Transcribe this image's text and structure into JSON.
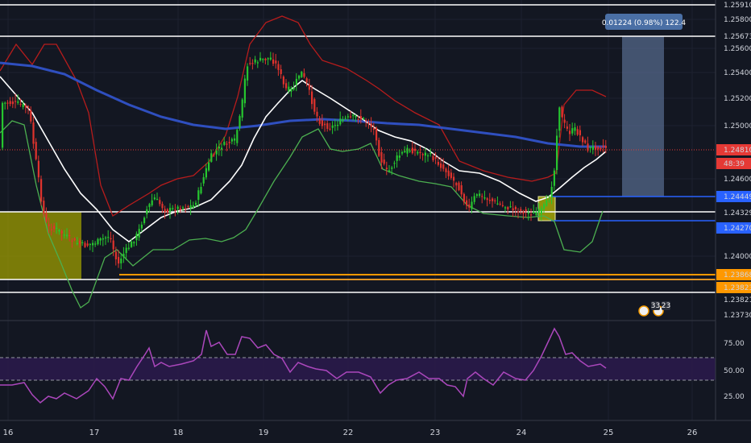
{
  "colors": {
    "background": "#131722",
    "grid": "#1f2433",
    "candle_up": "#26c62f",
    "candle_down": "#e0332d",
    "bb_upper": "#b71c1c",
    "bb_lower": "#4caf50",
    "ma_fast": "#ffffff",
    "ma_slow": "#2f4fbf",
    "rsi": "#ab47bc",
    "rsi_band": "#2a1a4a",
    "level_white": "#ffffff",
    "level_blue": "#2962ff",
    "level_orange": "#ff9800",
    "box_yellow": "#b8b800",
    "measure_box": "#5d7399",
    "current_price": "#e53935"
  },
  "measure": {
    "label": "0.01224 (0.98%) 122.4"
  },
  "price_axis": {
    "ticks": [
      "1.25800",
      "1.25600",
      "1.25400",
      "1.25200",
      "1.25000",
      "1.24600",
      "1.24000"
    ],
    "tags": [
      {
        "text": "1.25910",
        "style": "white"
      },
      {
        "text": "1.25673",
        "style": "white"
      },
      {
        "text": "1.24810",
        "style": "red"
      },
      {
        "text": "48:39",
        "style": "red"
      },
      {
        "text": "1.24449",
        "style": "blue"
      },
      {
        "text": "1.24329",
        "style": "white"
      },
      {
        "text": "1.24270",
        "style": "blue"
      },
      {
        "text": "1.23868",
        "style": "orange"
      },
      {
        "text": "1.23823",
        "style": "orange"
      },
      {
        "text": "1.23821",
        "style": "white"
      },
      {
        "text": "1.23730",
        "style": "white"
      }
    ]
  },
  "time_axis": {
    "labels": [
      "16",
      "17",
      "18",
      "19",
      "22",
      "23",
      "24",
      "25",
      "26"
    ]
  },
  "rsi_axis": {
    "ticks": [
      "75.00",
      "50.00",
      "25.00"
    ]
  },
  "events": {
    "badge1": "33",
    "badge2": "23"
  }
}
